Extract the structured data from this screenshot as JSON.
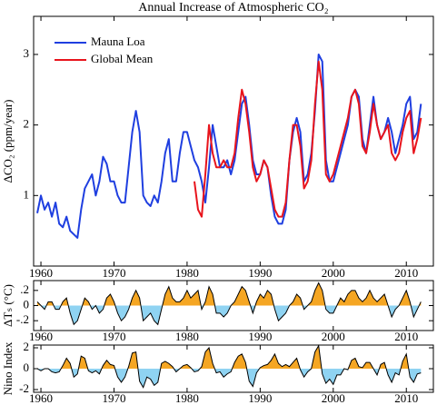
{
  "chart_data": [
    {
      "type": "line",
      "title": "Annual Increase of Atmospheric CO₂",
      "ylabel": "ΔCO₂ (ppm/year)",
      "x": [
        1959.5,
        1960,
        1960.5,
        1961,
        1961.5,
        1962,
        1962.5,
        1963,
        1963.5,
        1964,
        1964.5,
        1965,
        1965.5,
        1966,
        1966.5,
        1967,
        1967.5,
        1968,
        1968.5,
        1969,
        1969.5,
        1970,
        1970.5,
        1971,
        1971.5,
        1972,
        1972.5,
        1973,
        1973.5,
        1974,
        1974.5,
        1975,
        1975.5,
        1976,
        1976.5,
        1977,
        1977.5,
        1978,
        1978.5,
        1979,
        1979.5,
        1980,
        1980.5,
        1981,
        1981.5,
        1982,
        1982.5,
        1983,
        1983.5,
        1984,
        1984.5,
        1985,
        1985.5,
        1986,
        1986.5,
        1987,
        1987.5,
        1988,
        1988.5,
        1989,
        1989.5,
        1990,
        1990.5,
        1991,
        1991.5,
        1992,
        1992.5,
        1993,
        1993.5,
        1994,
        1994.5,
        1995,
        1995.5,
        1996,
        1996.5,
        1997,
        1997.5,
        1998,
        1998.5,
        1999,
        1999.5,
        2000,
        2000.5,
        2001,
        2001.5,
        2002,
        2002.5,
        2003,
        2003.5,
        2004,
        2004.5,
        2005,
        2005.5,
        2006,
        2006.5,
        2007,
        2007.5,
        2008,
        2008.5,
        2009,
        2009.5,
        2010,
        2010.5,
        2011,
        2011.5,
        2012
      ],
      "series": [
        {
          "name": "Mauna Loa",
          "color": "#1f3fe0",
          "values": [
            0.75,
            1.0,
            0.8,
            0.9,
            0.7,
            0.9,
            0.6,
            0.55,
            0.7,
            0.5,
            0.45,
            0.4,
            0.8,
            1.1,
            1.2,
            1.3,
            1.0,
            1.2,
            1.55,
            1.45,
            1.2,
            1.2,
            1.0,
            0.9,
            0.9,
            1.4,
            1.9,
            2.2,
            1.9,
            1.0,
            0.9,
            0.85,
            1.0,
            0.9,
            1.2,
            1.6,
            1.8,
            1.2,
            1.2,
            1.6,
            1.9,
            1.9,
            1.7,
            1.5,
            1.4,
            1.2,
            0.9,
            1.4,
            2.0,
            1.7,
            1.4,
            1.4,
            1.5,
            1.3,
            1.5,
            1.9,
            2.3,
            2.4,
            2.0,
            1.5,
            1.3,
            1.3,
            1.5,
            1.4,
            1.0,
            0.7,
            0.6,
            0.6,
            0.8,
            1.5,
            1.9,
            2.1,
            1.9,
            1.2,
            1.3,
            1.6,
            2.2,
            3.0,
            2.9,
            1.5,
            1.2,
            1.2,
            1.4,
            1.6,
            1.8,
            2.0,
            2.4,
            2.5,
            2.4,
            1.8,
            1.6,
            2.0,
            2.4,
            2.0,
            1.8,
            1.9,
            2.1,
            1.9,
            1.6,
            1.8,
            2.0,
            2.3,
            2.4,
            1.8,
            1.9,
            2.3
          ]
        },
        {
          "name": "Global Mean",
          "color": "#e8141c",
          "values": [
            null,
            null,
            null,
            null,
            null,
            null,
            null,
            null,
            null,
            null,
            null,
            null,
            null,
            null,
            null,
            null,
            null,
            null,
            null,
            null,
            null,
            null,
            null,
            null,
            null,
            null,
            null,
            null,
            null,
            null,
            null,
            null,
            null,
            null,
            null,
            null,
            null,
            null,
            null,
            null,
            null,
            null,
            null,
            1.2,
            0.8,
            0.7,
            1.3,
            2.0,
            1.6,
            1.4,
            1.4,
            1.5,
            1.4,
            1.4,
            1.6,
            2.1,
            2.5,
            2.3,
            1.9,
            1.4,
            1.2,
            1.3,
            1.5,
            1.4,
            1.1,
            0.8,
            0.7,
            0.7,
            0.9,
            1.5,
            2.0,
            2.0,
            1.7,
            1.1,
            1.2,
            1.5,
            2.3,
            2.9,
            2.5,
            1.3,
            1.2,
            1.3,
            1.5,
            1.7,
            1.9,
            2.1,
            2.4,
            2.5,
            2.3,
            1.7,
            1.6,
            1.9,
            2.3,
            2.0,
            1.8,
            1.9,
            2.0,
            1.6,
            1.5,
            1.6,
            1.9,
            2.1,
            2.2,
            1.6,
            1.8,
            2.1
          ]
        }
      ],
      "xlim": [
        1959,
        2013.7
      ],
      "xticks": [
        1960,
        1970,
        1980,
        1990,
        2000,
        2010
      ],
      "ylim": [
        0,
        3.54
      ],
      "yticks": [
        1,
        2,
        3
      ],
      "legend": "upper left"
    },
    {
      "type": "area",
      "ylabel": "ΔTₛ (°C)",
      "line_color": "#000000",
      "pos_color": "#f5a623",
      "neg_color": "#8fd3f2",
      "x": [
        1959.5,
        1960,
        1960.5,
        1961,
        1961.5,
        1962,
        1962.5,
        1963,
        1963.5,
        1964,
        1964.5,
        1965,
        1965.5,
        1966,
        1966.5,
        1967,
        1967.5,
        1968,
        1968.5,
        1969,
        1969.5,
        1970,
        1970.5,
        1971,
        1971.5,
        1972,
        1972.5,
        1973,
        1973.5,
        1974,
        1974.5,
        1975,
        1975.5,
        1976,
        1976.5,
        1977,
        1977.5,
        1978,
        1978.5,
        1979,
        1979.5,
        1980,
        1980.5,
        1981,
        1981.5,
        1982,
        1982.5,
        1983,
        1983.5,
        1984,
        1984.5,
        1985,
        1985.5,
        1986,
        1986.5,
        1987,
        1987.5,
        1988,
        1988.5,
        1989,
        1989.5,
        1990,
        1990.5,
        1991,
        1991.5,
        1992,
        1992.5,
        1993,
        1993.5,
        1994,
        1994.5,
        1995,
        1995.5,
        1996,
        1996.5,
        1997,
        1997.5,
        1998,
        1998.5,
        1999,
        1999.5,
        2000,
        2000.5,
        2001,
        2001.5,
        2002,
        2002.5,
        2003,
        2003.5,
        2004,
        2004.5,
        2005,
        2005.5,
        2006,
        2006.5,
        2007,
        2007.5,
        2008,
        2008.5,
        2009,
        2009.5,
        2010,
        2010.5,
        2011,
        2011.5,
        2012
      ],
      "values": [
        0.05,
        0.0,
        -0.05,
        0.05,
        0.05,
        -0.05,
        -0.05,
        0.05,
        0.1,
        -0.1,
        -0.25,
        -0.2,
        -0.05,
        0.1,
        0.05,
        -0.05,
        0.0,
        -0.1,
        -0.05,
        0.1,
        0.15,
        0.05,
        -0.1,
        -0.2,
        -0.15,
        -0.05,
        0.1,
        0.2,
        0.1,
        -0.2,
        -0.15,
        -0.1,
        -0.2,
        -0.25,
        -0.05,
        0.15,
        0.25,
        0.1,
        0.05,
        0.05,
        0.1,
        0.2,
        0.1,
        0.15,
        0.2,
        -0.05,
        0.05,
        0.25,
        0.15,
        -0.1,
        -0.1,
        -0.15,
        -0.1,
        0.0,
        0.05,
        0.15,
        0.25,
        0.2,
        0.05,
        -0.1,
        0.05,
        0.15,
        0.1,
        0.2,
        0.15,
        -0.05,
        -0.2,
        -0.15,
        -0.1,
        0.0,
        0.05,
        0.15,
        0.1,
        -0.05,
        0.0,
        0.05,
        0.2,
        0.3,
        0.2,
        -0.05,
        -0.1,
        -0.1,
        0.0,
        0.1,
        0.05,
        0.15,
        0.2,
        0.2,
        0.1,
        0.05,
        0.1,
        0.2,
        0.1,
        0.05,
        0.1,
        0.15,
        0.0,
        -0.15,
        -0.05,
        0.0,
        0.1,
        0.2,
        0.05,
        -0.15,
        -0.05,
        0.05
      ],
      "xlim": [
        1959,
        2013.7
      ],
      "xticks": [
        1960,
        1970,
        1980,
        1990,
        2000,
        2010
      ],
      "ylim": [
        -0.33,
        0.33
      ],
      "yticks": [
        {
          "value": 0.2,
          "label": ".2"
        },
        0,
        {
          "value": -0.2,
          "label": "-.2"
        }
      ]
    },
    {
      "type": "area",
      "ylabel": "Nino Index",
      "line_color": "#000000",
      "pos_color": "#f5a623",
      "neg_color": "#8fd3f2",
      "x": [
        1959.5,
        1960,
        1960.5,
        1961,
        1961.5,
        1962,
        1962.5,
        1963,
        1963.5,
        1964,
        1964.5,
        1965,
        1965.5,
        1966,
        1966.5,
        1967,
        1967.5,
        1968,
        1968.5,
        1969,
        1969.5,
        1970,
        1970.5,
        1971,
        1971.5,
        1972,
        1972.5,
        1973,
        1973.5,
        1974,
        1974.5,
        1975,
        1975.5,
        1976,
        1976.5,
        1977,
        1977.5,
        1978,
        1978.5,
        1979,
        1979.5,
        1980,
        1980.5,
        1981,
        1981.5,
        1982,
        1982.5,
        1983,
        1983.5,
        1984,
        1984.5,
        1985,
        1985.5,
        1986,
        1986.5,
        1987,
        1987.5,
        1988,
        1988.5,
        1989,
        1989.5,
        1990,
        1990.5,
        1991,
        1991.5,
        1992,
        1992.5,
        1993,
        1993.5,
        1994,
        1994.5,
        1995,
        1995.5,
        1996,
        1996.5,
        1997,
        1997.5,
        1998,
        1998.5,
        1999,
        1999.5,
        2000,
        2000.5,
        2001,
        2001.5,
        2002,
        2002.5,
        2003,
        2003.5,
        2004,
        2004.5,
        2005,
        2005.5,
        2006,
        2006.5,
        2007,
        2007.5,
        2008,
        2008.5,
        2009,
        2009.5,
        2010,
        2010.5,
        2011,
        2011.5,
        2012
      ],
      "values": [
        0,
        -0.2,
        0,
        0,
        -0.3,
        -0.4,
        -0.3,
        0.3,
        1.0,
        0.5,
        -0.8,
        -0.5,
        1.2,
        1.0,
        -0.2,
        -0.4,
        -0.2,
        -0.5,
        0.3,
        0.8,
        0.4,
        0.3,
        -0.8,
        -1.3,
        -0.8,
        0.2,
        1.5,
        1.6,
        -1.2,
        -1.8,
        -0.8,
        -1.0,
        -1.6,
        -1.3,
        0.5,
        0.7,
        0.5,
        0.2,
        -0.3,
        0,
        0.3,
        0.4,
        0.1,
        -0.3,
        -0.2,
        0.2,
        1.6,
        2.0,
        0.5,
        -0.4,
        -0.3,
        -0.8,
        -0.5,
        -0.3,
        0.6,
        1.2,
        1.4,
        0.6,
        -1.2,
        -1.7,
        -0.4,
        0.1,
        0.3,
        0.4,
        0.8,
        1.4,
        0.5,
        0.2,
        0.4,
        0.2,
        0.6,
        1.0,
        -0.1,
        -0.8,
        -0.3,
        0,
        1.6,
        2.2,
        -0.5,
        -1.4,
        -1.0,
        -1.5,
        -0.6,
        -0.6,
        0,
        -0.1,
        0.8,
        1.0,
        0.2,
        0.1,
        0.6,
        0.6,
        0,
        -0.6,
        0.4,
        0.6,
        -0.6,
        -1.3,
        -0.4,
        -0.6,
        0.7,
        1.4,
        -0.8,
        -1.3,
        -0.5,
        -0.4
      ],
      "xlim": [
        1959,
        2013.7
      ],
      "xticks": [
        1960,
        1970,
        1980,
        1990,
        2000,
        2010
      ],
      "ylim": [
        -2.26,
        2.26
      ],
      "yticks": [
        2,
        0,
        -2
      ]
    }
  ]
}
